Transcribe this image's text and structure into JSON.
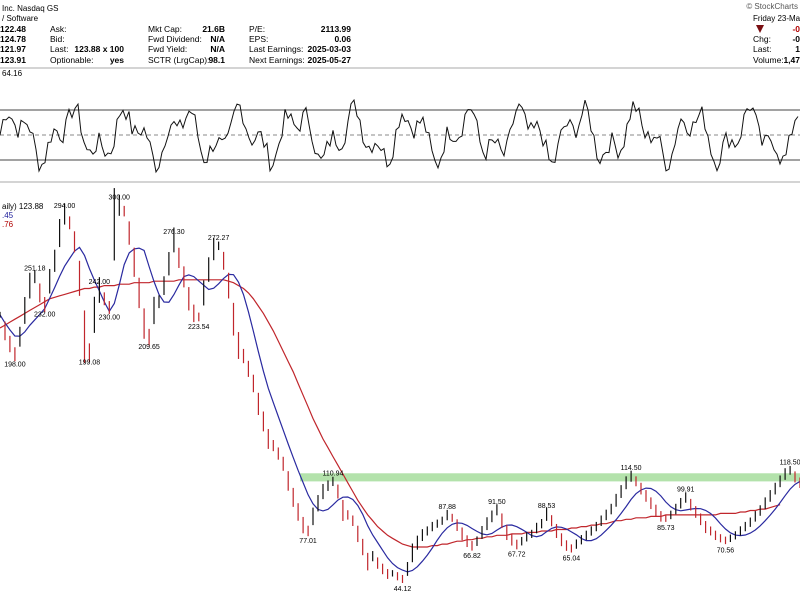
{
  "header": {
    "company": "Inc. Nasdaq GS",
    "sector": "/ Software",
    "watermark": "© StockCharts",
    "day": "Friday  23-Ma",
    "quote_rows": [
      {
        "left_value": "122.48",
        "mid_label": "Ask:",
        "fund_label": "Mkt Cap:",
        "fund_value": "21.6B",
        "earn_label": "P/E:",
        "earn_value": "2113.99"
      },
      {
        "left_value": "124.78",
        "mid_label": "Bid:",
        "fund_label": "Fwd Dividend:",
        "fund_value": "N/A",
        "earn_label": "EPS:",
        "earn_value": "0.06"
      },
      {
        "left_value": "121.97",
        "mid_label": "Last:",
        "mid_value": "123.88 x 100",
        "fund_label": "Fwd Yield:",
        "fund_value": "N/A",
        "earn_label": "Last Earnings:",
        "earn_value": "2025-03-03"
      },
      {
        "left_value": "123.91",
        "mid_label": "Optionable:",
        "mid_value": "yes",
        "fund_label": "SCTR (LrgCap):",
        "fund_value": "98.1",
        "earn_label": "Next Earnings:",
        "earn_value": "2025-05-27"
      }
    ],
    "right_labels": [
      "Chg:",
      "Last:",
      "Volume:"
    ],
    "right_values": [
      "-0",
      "1",
      "1,47"
    ]
  },
  "indicator": {
    "value_label": "64.16",
    "upper_level": 70,
    "lower_level": 30,
    "mid_level": 50
  },
  "price_legend": {
    "text": "aily) 123.88",
    "line2": ".45",
    "line3": ".76"
  },
  "chart_data": {
    "type": "line",
    "y_range": [
      40,
      305
    ],
    "resistance_zone": [
      110.94,
      116.5
    ],
    "series": [
      {
        "values": [
          225,
          214,
          205,
          198,
          210,
          228,
          245,
          251.18,
          240,
          232,
          248,
          262,
          281,
          294,
          288,
          275,
          250,
          210,
          199.08,
          225,
          242,
          236,
          230,
          287,
          300,
          296,
          281,
          261,
          240,
          219,
          209.65,
          228,
          234,
          245,
          260,
          276.3,
          264,
          251,
          236,
          226,
          223.54,
          240,
          256,
          270,
          272.27,
          262,
          245,
          222,
          204,
          196.78,
          188,
          178,
          164,
          152,
          140,
          135.46,
          130,
          123,
          111.25,
          100,
          90,
          81,
          77.01,
          87,
          96,
          104,
          108,
          110.94,
          104,
          91.03,
          88,
          84,
          75,
          66,
          56,
          59.74,
          55,
          51,
          47.54,
          48,
          46,
          44.12,
          51,
          62,
          69,
          74.18,
          77,
          80,
          82,
          84,
          87.88,
          86,
          81,
          75,
          70,
          66.82,
          70,
          76,
          82,
          87,
          91.5,
          84,
          76,
          71,
          67.72,
          70,
          73,
          75,
          79,
          82,
          88.53,
          84,
          77,
          71,
          67,
          65.04,
          68,
          71,
          74,
          77,
          80,
          84,
          88,
          92,
          98,
          104,
          110,
          114.5,
          111,
          106,
          101,
          96,
          91,
          87,
          85.73,
          88,
          92,
          96,
          99.91,
          95,
          90,
          85,
          79.68,
          77,
          74,
          72,
          70.56,
          72,
          74,
          77,
          80,
          83,
          87,
          91,
          96,
          101,
          106,
          111,
          116,
          118.5,
          114,
          110
        ]
      },
      {
        "values": [
          216,
          218,
          220,
          222,
          224,
          226,
          228,
          230,
          232,
          234,
          236,
          237,
          238,
          239,
          240,
          241,
          242,
          243,
          243,
          244,
          244,
          245,
          245,
          245,
          246,
          246,
          246,
          247,
          247,
          247,
          247,
          248,
          248,
          248,
          248,
          248,
          249,
          249,
          249,
          249,
          249,
          249,
          249,
          249,
          249,
          249,
          248,
          247,
          245,
          243,
          240,
          236,
          231,
          226,
          220,
          214,
          207,
          200,
          193,
          186,
          178,
          170,
          162,
          154,
          147,
          140,
          134,
          128,
          122,
          116,
          110,
          104,
          98,
          93,
          88,
          84,
          80,
          77,
          74,
          72,
          70,
          68,
          67,
          66,
          66,
          66,
          66,
          67,
          67,
          68,
          68,
          69,
          70,
          70,
          71,
          71,
          72,
          72,
          73,
          73,
          74,
          74,
          74,
          75,
          75,
          75,
          76,
          76,
          76,
          77,
          77,
          77,
          78,
          78,
          78,
          79,
          79,
          80,
          80,
          81,
          81,
          82,
          82,
          83,
          84,
          84,
          85,
          85,
          86,
          86,
          86,
          87,
          87,
          87,
          88,
          88,
          88,
          88,
          88,
          88,
          88,
          88,
          88,
          88,
          88,
          89,
          89,
          89,
          89,
          90,
          90,
          91,
          91,
          92,
          92,
          93,
          94,
          95
        ]
      }
    ]
  }
}
